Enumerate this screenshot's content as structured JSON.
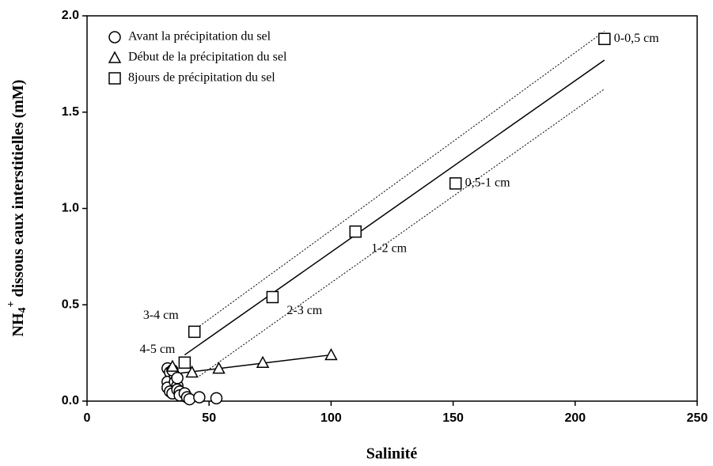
{
  "chart_data": {
    "type": "scatter",
    "xlabel": "Salinité",
    "ylabel": {
      "base": "NH",
      "sub": "4",
      "sup": "+",
      "rest": " dissous eaux interstitielles (mM)"
    },
    "xlim": [
      0,
      250
    ],
    "ylim": [
      0,
      2
    ],
    "xticks": [
      0,
      50,
      100,
      150,
      200,
      250
    ],
    "yticks": [
      {
        "value": 0,
        "label": "0.0"
      },
      0.5,
      {
        "value": 1,
        "label": "1.0"
      },
      1.5,
      {
        "value": 2,
        "label": "2.0"
      }
    ],
    "legend": "upper left",
    "series": [
      {
        "name": "Avant la précipitation du sel",
        "marker": "circle",
        "color": "#000000",
        "x": [
          33,
          34,
          33,
          33,
          34,
          35,
          36,
          36,
          37,
          37,
          38,
          38,
          40,
          41,
          42,
          46,
          53,
          35,
          37
        ],
        "values": [
          0.17,
          0.15,
          0.1,
          0.07,
          0.05,
          0.04,
          0.13,
          0.1,
          0.08,
          0.06,
          0.05,
          0.03,
          0.04,
          0.02,
          0.01,
          0.02,
          0.015,
          0.16,
          0.12
        ]
      },
      {
        "name": "Début de la précipitation du sel",
        "marker": "triangle",
        "color": "#000000",
        "x": [
          35,
          43,
          54,
          72,
          100
        ],
        "values": [
          0.18,
          0.15,
          0.17,
          0.2,
          0.24
        ]
      },
      {
        "name": "8jours de précipitation du sel",
        "marker": "square",
        "color": "#000000",
        "x": [
          44,
          40,
          76,
          110,
          151,
          212
        ],
        "values": [
          0.36,
          0.2,
          0.54,
          0.88,
          1.13,
          1.88
        ],
        "labels": [
          "3-4 cm",
          "4-5 cm",
          "2-3 cm",
          "1-2 cm",
          "0,5-1 cm",
          "0-0,5 cm"
        ]
      }
    ],
    "lines": [
      {
        "style": "solid",
        "x": [
          40,
          212
        ],
        "values": [
          0.24,
          1.77
        ]
      },
      {
        "style": "solid",
        "x": [
          35,
          100
        ],
        "values": [
          0.14,
          0.24
        ]
      },
      {
        "style": "dotted",
        "x": [
          44,
          212
        ],
        "values": [
          0.37,
          1.92
        ]
      },
      {
        "style": "dotted",
        "x": [
          46,
          212
        ],
        "values": [
          0.13,
          1.62
        ]
      }
    ]
  }
}
